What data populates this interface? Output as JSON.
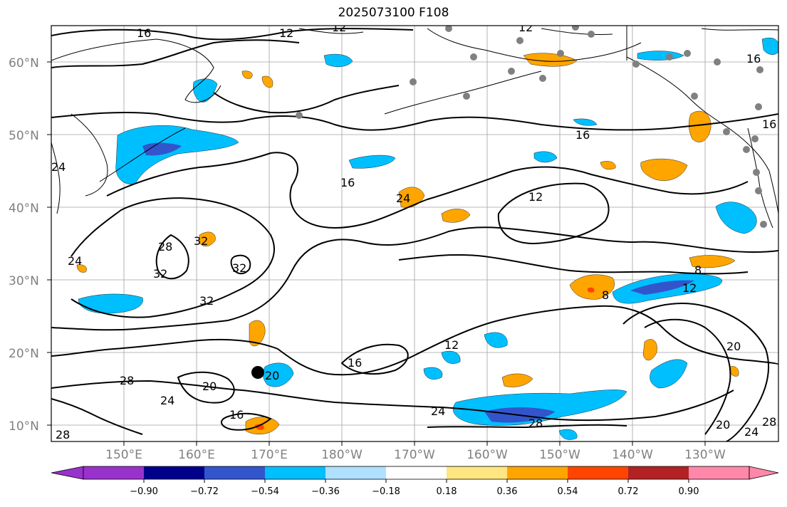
{
  "title": "2025073100 F108",
  "map": {
    "lat_ticks": [
      "60°N",
      "50°N",
      "40°N",
      "30°N",
      "20°N",
      "10°N"
    ],
    "lon_ticks": [
      "150°E",
      "160°E",
      "170°E",
      "180°W",
      "170°W",
      "160°W",
      "150°W",
      "140°W",
      "130°W"
    ],
    "contour_labels": [
      "16",
      "12",
      "12",
      "12",
      "16",
      "16",
      "16",
      "16",
      "24",
      "24",
      "12",
      "28",
      "32",
      "32",
      "32",
      "24",
      "28",
      "32",
      "8",
      "12",
      "8",
      "20",
      "12",
      "16",
      "20",
      "24",
      "20",
      "28",
      "24",
      "16",
      "24",
      "28",
      "28",
      "20",
      "24",
      "28"
    ]
  },
  "colorbar": {
    "tick_labels": [
      "−0.90",
      "−0.72",
      "−0.54",
      "−0.36",
      "−0.18",
      "0.18",
      "0.36",
      "0.54",
      "0.72",
      "0.90"
    ],
    "colors": [
      "#9932CC",
      "#00008B",
      "#3355CC",
      "#00BFFF",
      "#B0E0FF",
      "#FFFFFF",
      "#FFE680",
      "#FFA500",
      "#FF4500",
      "#B22222",
      "#FF88AA"
    ]
  }
}
